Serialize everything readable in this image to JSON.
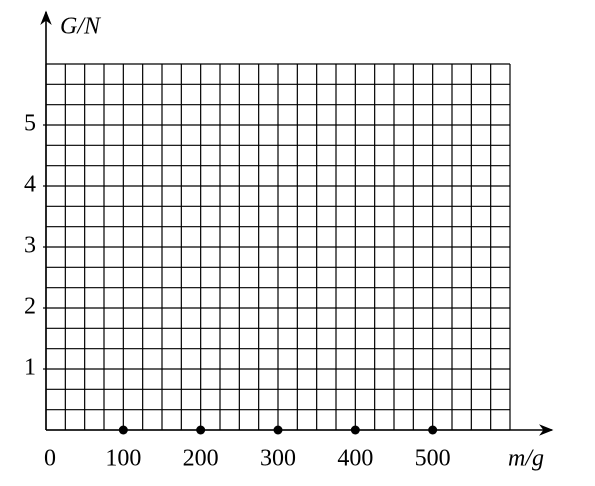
{
  "chart_data": {
    "type": "grid",
    "x_label": "m/g",
    "y_label": "G/N",
    "xlim": [
      0,
      600
    ],
    "ylim": [
      0,
      6
    ],
    "xticks": [
      0,
      100,
      200,
      300,
      400,
      500
    ],
    "yticks": [
      1,
      2,
      3,
      4,
      5
    ],
    "grid": true,
    "grid_divisions": {
      "x": 24,
      "y": 18
    },
    "tick_marker": "dot",
    "color": "#000000"
  }
}
